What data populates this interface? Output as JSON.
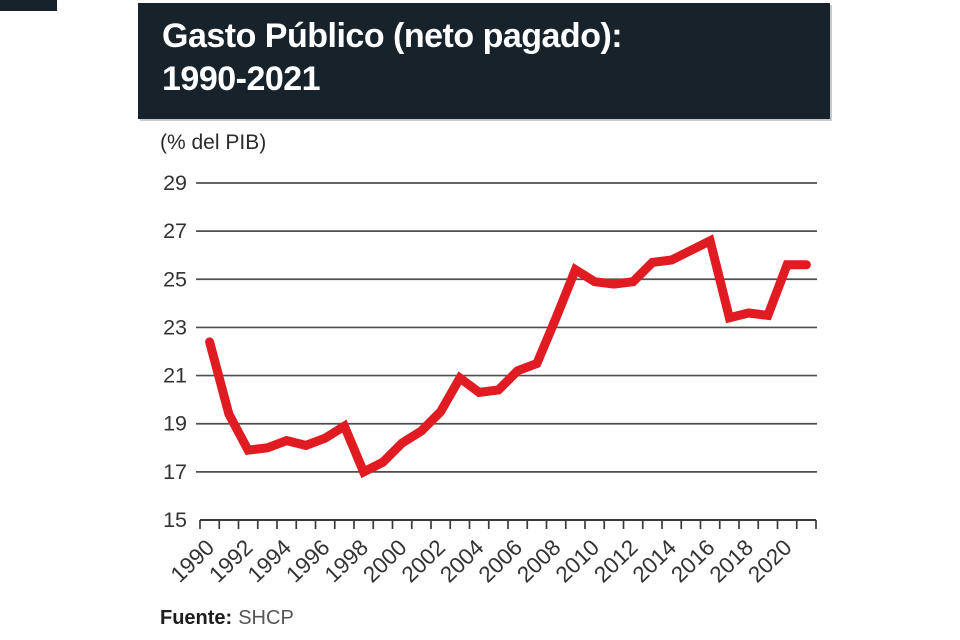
{
  "header": {
    "title_line1": "Gasto Público (neto pagado):",
    "title_line2": "1990-2021"
  },
  "unit_label": "(% del PIB)",
  "source": {
    "label": "Fuente:",
    "value": "SHCP"
  },
  "colors": {
    "header_bg": "#18222a",
    "line": "#e01b22",
    "grid": "#4f4f4f",
    "axis": "#3a3a3a",
    "text": "#333333"
  },
  "chart_data": {
    "type": "line",
    "title": "Gasto Público (neto pagado): 1990-2021",
    "subtitle": "(% del PIB)",
    "source": "Fuente: SHCP",
    "x": [
      1990,
      1991,
      1992,
      1993,
      1994,
      1995,
      1996,
      1997,
      1998,
      1999,
      2000,
      2001,
      2002,
      2003,
      2004,
      2005,
      2006,
      2007,
      2008,
      2009,
      2010,
      2011,
      2012,
      2013,
      2014,
      2015,
      2016,
      2017,
      2018,
      2019,
      2020,
      2021
    ],
    "series": [
      {
        "name": "Gasto público neto pagado (% del PIB)",
        "values": [
          22.4,
          19.4,
          17.9,
          18.0,
          18.3,
          18.1,
          18.4,
          18.9,
          17.0,
          17.4,
          18.2,
          18.7,
          19.5,
          20.9,
          20.3,
          20.4,
          21.2,
          21.5,
          23.4,
          25.4,
          24.9,
          24.8,
          24.9,
          25.7,
          25.8,
          26.2,
          26.6,
          23.4,
          23.6,
          23.5,
          25.6,
          25.6
        ]
      }
    ],
    "ylim": [
      15,
      29
    ],
    "yticks": [
      15,
      17,
      19,
      21,
      23,
      25,
      27,
      29
    ],
    "xtick_labels": [
      1990,
      1992,
      1994,
      1996,
      1998,
      2000,
      2002,
      2004,
      2006,
      2008,
      2010,
      2012,
      2014,
      2016,
      2018,
      2020
    ],
    "xtick_label_rotation_deg": -44,
    "grid": "horizontal",
    "legend": "none",
    "line_color": "#e01b22"
  }
}
